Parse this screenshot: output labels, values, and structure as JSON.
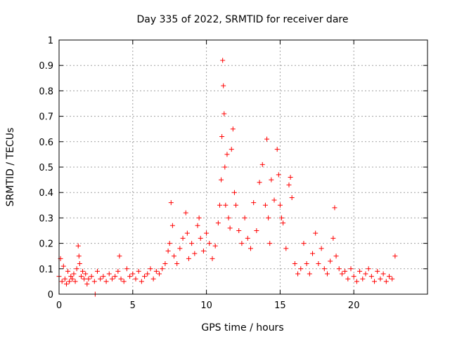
{
  "chart_data": {
    "type": "scatter",
    "title": "Day 335 of 2022, SRMTID for receiver dare",
    "xlabel": "GPS time / hours",
    "ylabel": "SRMTID / TECUs",
    "xlim": [
      0,
      25
    ],
    "ylim": [
      0,
      1
    ],
    "xticks": [
      0,
      5,
      10,
      15,
      20
    ],
    "yticks": [
      0,
      0.1,
      0.2,
      0.3,
      0.4,
      0.5,
      0.6,
      0.7,
      0.8,
      0.9,
      1
    ],
    "xtick_labels": [
      "0",
      "5",
      "10",
      "15",
      "20"
    ],
    "ytick_labels": [
      "0",
      "0.1",
      "0.2",
      "0.3",
      "0.4",
      "0.5",
      "0.6",
      "0.7",
      "0.8",
      "0.9",
      "1"
    ],
    "grid": true,
    "marker": "+",
    "color": "#ff0000",
    "series": [
      {
        "name": "SRMTID",
        "x": [
          0.0,
          0.1,
          0.2,
          0.3,
          0.4,
          0.5,
          0.6,
          0.7,
          0.8,
          0.9,
          1.0,
          1.1,
          1.2,
          1.3,
          1.35,
          1.4,
          1.5,
          1.6,
          1.7,
          1.8,
          1.9,
          2.0,
          2.2,
          2.4,
          2.45,
          2.6,
          2.8,
          3.0,
          3.2,
          3.4,
          3.6,
          3.8,
          4.0,
          4.1,
          4.2,
          4.4,
          4.6,
          4.8,
          5.0,
          5.2,
          5.4,
          5.6,
          5.8,
          6.0,
          6.2,
          6.4,
          6.6,
          6.8,
          7.0,
          7.2,
          7.4,
          7.5,
          7.6,
          7.7,
          7.8,
          8.0,
          8.2,
          8.4,
          8.6,
          8.7,
          8.8,
          9.0,
          9.2,
          9.4,
          9.5,
          9.6,
          9.8,
          10.0,
          10.2,
          10.4,
          10.6,
          10.8,
          10.9,
          11.0,
          11.05,
          11.1,
          11.15,
          11.2,
          11.25,
          11.3,
          11.4,
          11.5,
          11.6,
          11.7,
          11.8,
          11.9,
          12.0,
          12.2,
          12.4,
          12.6,
          12.8,
          13.0,
          13.2,
          13.4,
          13.6,
          13.8,
          14.0,
          14.1,
          14.2,
          14.3,
          14.4,
          14.6,
          14.8,
          14.9,
          15.0,
          15.1,
          15.2,
          15.4,
          15.6,
          15.7,
          15.8,
          16.0,
          16.2,
          16.4,
          16.6,
          16.8,
          17.0,
          17.2,
          17.4,
          17.6,
          17.8,
          18.0,
          18.2,
          18.4,
          18.6,
          18.7,
          18.8,
          19.0,
          19.2,
          19.4,
          19.6,
          19.8,
          20.0,
          20.2,
          20.4,
          20.6,
          20.8,
          21.0,
          21.2,
          21.4,
          21.6,
          21.8,
          22.0,
          22.2,
          22.4,
          22.6,
          22.8
        ],
        "values": [
          0.07,
          0.14,
          0.05,
          0.11,
          0.06,
          0.04,
          0.09,
          0.05,
          0.07,
          0.06,
          0.08,
          0.05,
          0.1,
          0.19,
          0.15,
          0.12,
          0.07,
          0.09,
          0.06,
          0.08,
          0.04,
          0.06,
          0.07,
          0.05,
          0.0,
          0.09,
          0.06,
          0.07,
          0.05,
          0.08,
          0.06,
          0.07,
          0.09,
          0.15,
          0.06,
          0.05,
          0.1,
          0.07,
          0.08,
          0.06,
          0.09,
          0.05,
          0.07,
          0.08,
          0.1,
          0.06,
          0.09,
          0.08,
          0.1,
          0.12,
          0.17,
          0.2,
          0.36,
          0.27,
          0.15,
          0.12,
          0.18,
          0.22,
          0.32,
          0.24,
          0.14,
          0.2,
          0.16,
          0.27,
          0.3,
          0.22,
          0.17,
          0.24,
          0.2,
          0.14,
          0.19,
          0.28,
          0.35,
          0.45,
          0.62,
          0.92,
          0.82,
          0.71,
          0.5,
          0.35,
          0.55,
          0.3,
          0.26,
          0.57,
          0.65,
          0.4,
          0.35,
          0.25,
          0.2,
          0.3,
          0.22,
          0.18,
          0.36,
          0.25,
          0.44,
          0.51,
          0.35,
          0.61,
          0.3,
          0.2,
          0.45,
          0.37,
          0.57,
          0.47,
          0.35,
          0.3,
          0.28,
          0.18,
          0.43,
          0.46,
          0.38,
          0.12,
          0.08,
          0.1,
          0.2,
          0.12,
          0.08,
          0.16,
          0.24,
          0.12,
          0.18,
          0.1,
          0.08,
          0.13,
          0.22,
          0.34,
          0.15,
          0.1,
          0.08,
          0.09,
          0.06,
          0.1,
          0.07,
          0.05,
          0.09,
          0.06,
          0.08,
          0.1,
          0.07,
          0.05,
          0.09,
          0.06,
          0.08,
          0.05,
          0.07,
          0.06,
          0.15
        ]
      }
    ]
  }
}
